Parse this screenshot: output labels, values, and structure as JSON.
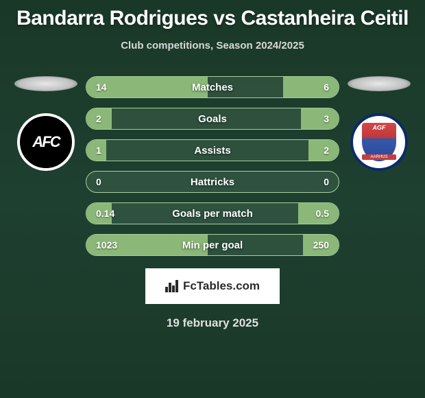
{
  "title": "Bandarra Rodrigues vs Castanheira Ceitil",
  "subtitle": "Club competitions, Season 2024/2025",
  "date": "19 february 2025",
  "logo_text": "FcTables.com",
  "colors": {
    "bar_fill": "#8bb878",
    "bar_border": "#a8d098",
    "background": "#1a3828",
    "text": "#ffffff"
  },
  "badges": {
    "left": {
      "label": "AFC",
      "bg": "#000000",
      "border": "#ffffff"
    },
    "right": {
      "label": "AGF",
      "scroll": "AARHUS",
      "bg": "#ffffff",
      "border": "#0a2a6a"
    }
  },
  "stats": [
    {
      "label": "Matches",
      "left_value": "14",
      "right_value": "6",
      "left_pct": 48,
      "right_pct": 22
    },
    {
      "label": "Goals",
      "left_value": "2",
      "right_value": "3",
      "left_pct": 10,
      "right_pct": 15
    },
    {
      "label": "Assists",
      "left_value": "1",
      "right_value": "2",
      "left_pct": 8,
      "right_pct": 12
    },
    {
      "label": "Hattricks",
      "left_value": "0",
      "right_value": "0",
      "left_pct": 0,
      "right_pct": 0
    },
    {
      "label": "Goals per match",
      "left_value": "0.14",
      "right_value": "0.5",
      "left_pct": 10,
      "right_pct": 16
    },
    {
      "label": "Min per goal",
      "left_value": "1023",
      "right_value": "250",
      "left_pct": 48,
      "right_pct": 14
    }
  ]
}
